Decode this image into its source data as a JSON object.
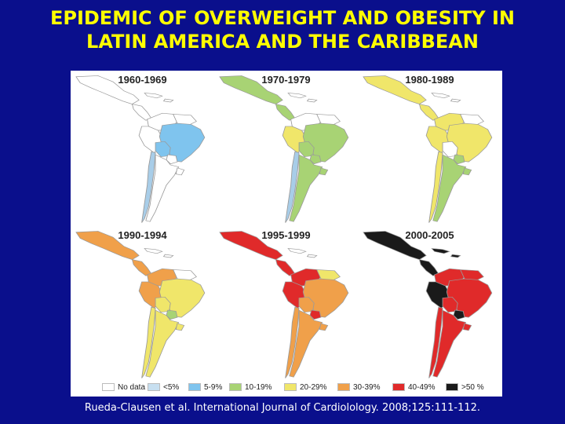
{
  "title": {
    "line1": "EPIDEMIC OF OVERWEIGHT AND OBESITY IN",
    "line2": "LATIN AMERICA AND THE CARIBBEAN"
  },
  "panels": [
    {
      "label": "1960-1969",
      "colors": {
        "mexico": "#ffffff",
        "central": "#ffffff",
        "caribbean": "#ffffff",
        "northwest": "#ffffff",
        "north": "#ffffff",
        "brazil": "#7fc4ee",
        "peru": "#ffffff",
        "bolivia": "#7fc4ee",
        "chile": "#a8cde8",
        "argentina": "#ffffff",
        "paraguay": "#ffffff",
        "uruguay": "#ffffff"
      }
    },
    {
      "label": "1970-1979",
      "colors": {
        "mexico": "#a8d374",
        "central": "#a8d374",
        "caribbean": "#ffffff",
        "northwest": "#ffffff",
        "north": "#ffffff",
        "brazil": "#a8d374",
        "peru": "#f0e66a",
        "bolivia": "#a8d374",
        "chile": "#a8cde8",
        "argentina": "#a8d374",
        "paraguay": "#a8d374",
        "uruguay": "#a8d374"
      }
    },
    {
      "label": "1980-1989",
      "colors": {
        "mexico": "#f0e66a",
        "central": "#f0e66a",
        "caribbean": "#ffffff",
        "northwest": "#f0e66a",
        "north": "#ffffff",
        "brazil": "#f0e66a",
        "peru": "#f0e66a",
        "bolivia": "#ffffff",
        "chile": "#f0e66a",
        "argentina": "#a8d374",
        "paraguay": "#a8d374",
        "uruguay": "#a8d374"
      }
    },
    {
      "label": "1990-1994",
      "colors": {
        "mexico": "#f0a04a",
        "central": "#f0a04a",
        "caribbean": "#ffffff",
        "northwest": "#f0a04a",
        "north": "#ffffff",
        "brazil": "#f0e66a",
        "peru": "#f0a04a",
        "bolivia": "#f0e66a",
        "chile": "#f0e66a",
        "argentina": "#f0e66a",
        "paraguay": "#a8d374",
        "uruguay": "#f0e66a"
      }
    },
    {
      "label": "1995-1999",
      "colors": {
        "mexico": "#e02a2a",
        "central": "#e02a2a",
        "caribbean": "#ffffff",
        "northwest": "#e02a2a",
        "north": "#f0e66a",
        "brazil": "#f0a04a",
        "peru": "#e02a2a",
        "bolivia": "#f0a04a",
        "chile": "#f0a04a",
        "argentina": "#f0a04a",
        "paraguay": "#e02a2a",
        "uruguay": "#f0a04a"
      }
    },
    {
      "label": "2000-2005",
      "colors": {
        "mexico": "#1a1a1a",
        "central": "#1a1a1a",
        "caribbean": "#1a1a1a",
        "northwest": "#e02a2a",
        "north": "#e02a2a",
        "brazil": "#e02a2a",
        "peru": "#1a1a1a",
        "bolivia": "#e02a2a",
        "chile": "#e02a2a",
        "argentina": "#e02a2a",
        "paraguay": "#1a1a1a",
        "uruguay": "#e02a2a"
      }
    }
  ],
  "legend": [
    {
      "label": "No data",
      "color": "#ffffff"
    },
    {
      "label": "<5%",
      "color": "#c7dff0"
    },
    {
      "label": "5-9%",
      "color": "#7fc4ee"
    },
    {
      "label": "10-19%",
      "color": "#a8d374"
    },
    {
      "label": "20-29%",
      "color": "#f0e66a"
    },
    {
      "label": "30-39%",
      "color": "#f0a04a"
    },
    {
      "label": "40-49%",
      "color": "#e02a2a"
    },
    {
      "label": ">50 %",
      "color": "#1a1a1a"
    }
  ],
  "citation": "Rueda-Clausen et al. International Journal of Cardiolology. 2008;125:111-112."
}
